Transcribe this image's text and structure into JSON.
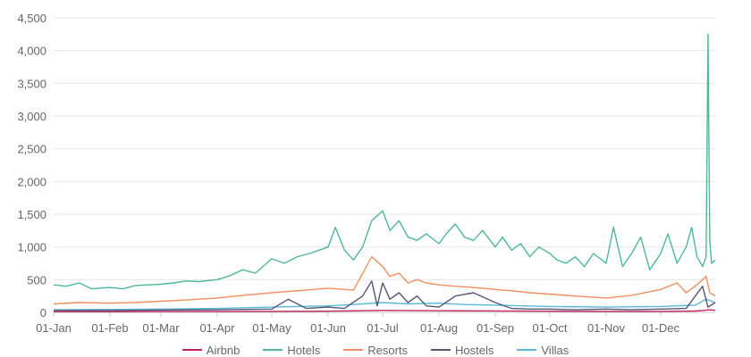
{
  "chart_data": {
    "type": "line",
    "title": "",
    "xlabel": "",
    "ylabel": "",
    "ylim": [
      0,
      4500
    ],
    "yticks": [
      "0",
      "500",
      "1,000",
      "1,500",
      "2,000",
      "2,500",
      "3,000",
      "3,500",
      "4,000",
      "4,500"
    ],
    "ytick_values": [
      0,
      500,
      1000,
      1500,
      2000,
      2500,
      3000,
      3500,
      4000,
      4500
    ],
    "xlim": [
      "01-Jan",
      "31-Dec"
    ],
    "xticks": [
      "01-Jan",
      "01-Feb",
      "01-Mar",
      "01-Apr",
      "01-May",
      "01-Jun",
      "01-Jul",
      "01-Aug",
      "01-Sep",
      "01-Oct",
      "01-Nov",
      "01-Dec"
    ],
    "grid": true,
    "legend_position": "bottom",
    "series": [
      {
        "name": "Airbnb",
        "color": "#c0265f",
        "x": [
          "01-Jan",
          "01-Feb",
          "01-Mar",
          "01-Apr",
          "01-May",
          "01-Jun",
          "01-Jul",
          "01-Aug",
          "01-Sep",
          "01-Oct",
          "01-Nov",
          "01-Dec",
          "20-Dec",
          "25-Dec",
          "28-Dec",
          "31-Dec"
        ],
        "values": [
          10,
          10,
          12,
          12,
          15,
          18,
          30,
          25,
          22,
          18,
          15,
          15,
          20,
          30,
          40,
          30
        ]
      },
      {
        "name": "Hotels",
        "color": "#4db89a",
        "x": [
          "01-Jan",
          "08-Jan",
          "15-Jan",
          "22-Jan",
          "01-Feb",
          "08-Feb",
          "15-Feb",
          "22-Feb",
          "01-Mar",
          "08-Mar",
          "15-Mar",
          "22-Mar",
          "01-Apr",
          "08-Apr",
          "15-Apr",
          "22-Apr",
          "01-May",
          "08-May",
          "15-May",
          "22-May",
          "01-Jun",
          "05-Jun",
          "10-Jun",
          "15-Jun",
          "20-Jun",
          "25-Jun",
          "01-Jul",
          "05-Jul",
          "10-Jul",
          "15-Jul",
          "20-Jul",
          "25-Jul",
          "01-Aug",
          "05-Aug",
          "10-Aug",
          "15-Aug",
          "20-Aug",
          "25-Aug",
          "01-Sep",
          "05-Sep",
          "10-Sep",
          "15-Sep",
          "20-Sep",
          "25-Sep",
          "01-Oct",
          "05-Oct",
          "10-Oct",
          "15-Oct",
          "20-Oct",
          "25-Oct",
          "01-Nov",
          "05-Nov",
          "10-Nov",
          "15-Nov",
          "20-Nov",
          "25-Nov",
          "01-Dec",
          "05-Dec",
          "10-Dec",
          "15-Dec",
          "18-Dec",
          "21-Dec",
          "24-Dec",
          "26-Dec",
          "27-Dec",
          "28-Dec",
          "29-Dec",
          "31-Dec"
        ],
        "values": [
          420,
          400,
          450,
          360,
          380,
          360,
          410,
          420,
          430,
          450,
          480,
          470,
          500,
          560,
          650,
          600,
          820,
          750,
          850,
          900,
          1000,
          1300,
          950,
          800,
          1000,
          1400,
          1550,
          1250,
          1400,
          1150,
          1100,
          1200,
          1050,
          1200,
          1350,
          1150,
          1100,
          1250,
          1000,
          1150,
          950,
          1050,
          850,
          1000,
          900,
          800,
          750,
          850,
          700,
          900,
          750,
          1300,
          700,
          900,
          1150,
          650,
          900,
          1200,
          750,
          1000,
          1300,
          850,
          700,
          850,
          4250,
          1100,
          750,
          800
        ]
      },
      {
        "name": "Resorts",
        "color": "#f09060",
        "x": [
          "01-Jan",
          "15-Jan",
          "01-Feb",
          "15-Feb",
          "01-Mar",
          "15-Mar",
          "01-Apr",
          "15-Apr",
          "01-May",
          "15-May",
          "01-Jun",
          "15-Jun",
          "25-Jun",
          "01-Jul",
          "05-Jul",
          "10-Jul",
          "15-Jul",
          "20-Jul",
          "25-Jul",
          "01-Aug",
          "10-Aug",
          "20-Aug",
          "01-Sep",
          "10-Sep",
          "20-Sep",
          "01-Oct",
          "15-Oct",
          "01-Nov",
          "15-Nov",
          "01-Dec",
          "10-Dec",
          "15-Dec",
          "20-Dec",
          "24-Dec",
          "26-Dec",
          "28-Dec",
          "31-Dec"
        ],
        "values": [
          130,
          150,
          140,
          150,
          170,
          190,
          220,
          260,
          300,
          330,
          370,
          340,
          850,
          700,
          550,
          600,
          450,
          500,
          450,
          420,
          400,
          380,
          350,
          330,
          300,
          280,
          250,
          220,
          260,
          350,
          450,
          300,
          400,
          500,
          550,
          300,
          250
        ]
      },
      {
        "name": "Hostels",
        "color": "#555577",
        "x": [
          "01-Jan",
          "01-Feb",
          "01-Mar",
          "01-Apr",
          "01-May",
          "10-May",
          "20-May",
          "01-Jun",
          "10-Jun",
          "20-Jun",
          "25-Jun",
          "28-Jun",
          "01-Jul",
          "05-Jul",
          "10-Jul",
          "15-Jul",
          "20-Jul",
          "25-Jul",
          "01-Aug",
          "10-Aug",
          "20-Aug",
          "01-Sep",
          "10-Sep",
          "20-Sep",
          "01-Oct",
          "15-Oct",
          "01-Nov",
          "15-Nov",
          "01-Dec",
          "15-Dec",
          "24-Dec",
          "27-Dec",
          "31-Dec"
        ],
        "values": [
          30,
          30,
          35,
          40,
          50,
          200,
          60,
          80,
          60,
          250,
          480,
          100,
          450,
          200,
          300,
          150,
          250,
          100,
          80,
          250,
          300,
          150,
          60,
          50,
          50,
          40,
          50,
          40,
          50,
          60,
          400,
          80,
          150
        ]
      },
      {
        "name": "Villas",
        "color": "#5bb8d6",
        "x": [
          "01-Jan",
          "01-Feb",
          "01-Mar",
          "01-Apr",
          "01-May",
          "01-Jun",
          "15-Jun",
          "01-Jul",
          "15-Jul",
          "01-Aug",
          "15-Aug",
          "01-Sep",
          "01-Oct",
          "01-Nov",
          "01-Dec",
          "20-Dec",
          "26-Dec",
          "31-Dec"
        ],
        "values": [
          40,
          45,
          50,
          60,
          80,
          100,
          120,
          150,
          130,
          140,
          120,
          110,
          90,
          80,
          90,
          110,
          200,
          150
        ]
      }
    ]
  }
}
